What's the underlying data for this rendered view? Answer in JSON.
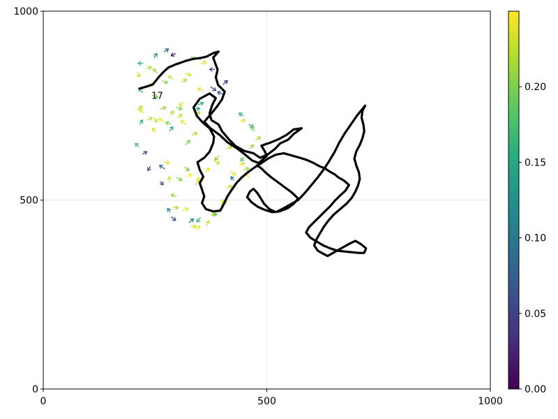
{
  "chart_data": {
    "type": "line+quiver",
    "xlim": [
      0,
      1000
    ],
    "ylim": [
      0,
      1000
    ],
    "x_ticks": [
      "0",
      "500",
      "1000"
    ],
    "y_ticks": [
      "0",
      "500",
      "1000"
    ],
    "grid": true,
    "annotation": {
      "text": "17",
      "x": 255,
      "y": 768
    },
    "path_color": "#000000",
    "path": [
      [
        215,
        795
      ],
      [
        230,
        800
      ],
      [
        245,
        806
      ],
      [
        258,
        825
      ],
      [
        268,
        838
      ],
      [
        280,
        851
      ],
      [
        296,
        859
      ],
      [
        308,
        864
      ],
      [
        320,
        869
      ],
      [
        336,
        874
      ],
      [
        352,
        876
      ],
      [
        366,
        880
      ],
      [
        380,
        889
      ],
      [
        392,
        893
      ],
      [
        380,
        877
      ],
      [
        385,
        861
      ],
      [
        390,
        845
      ],
      [
        386,
        825
      ],
      [
        391,
        805
      ],
      [
        406,
        787
      ],
      [
        400,
        767
      ],
      [
        389,
        748
      ],
      [
        376,
        729
      ],
      [
        360,
        707
      ],
      [
        374,
        690
      ],
      [
        395,
        672
      ],
      [
        412,
        653
      ],
      [
        433,
        637
      ],
      [
        452,
        620
      ],
      [
        467,
        605
      ],
      [
        482,
        598
      ],
      [
        500,
        617
      ],
      [
        495,
        630
      ],
      [
        488,
        644
      ],
      [
        510,
        653
      ],
      [
        528,
        662
      ],
      [
        545,
        673
      ],
      [
        560,
        687
      ],
      [
        578,
        690
      ],
      [
        560,
        675
      ],
      [
        548,
        660
      ],
      [
        530,
        650
      ],
      [
        518,
        635
      ],
      [
        501,
        620
      ],
      [
        485,
        612
      ],
      [
        470,
        624
      ],
      [
        450,
        630
      ],
      [
        430,
        643
      ],
      [
        415,
        661
      ],
      [
        400,
        682
      ],
      [
        392,
        700
      ],
      [
        376,
        712
      ],
      [
        372,
        730
      ],
      [
        378,
        752
      ],
      [
        386,
        770
      ],
      [
        372,
        782
      ],
      [
        350,
        768
      ],
      [
        336,
        745
      ],
      [
        344,
        722
      ],
      [
        357,
        705
      ],
      [
        372,
        690
      ],
      [
        382,
        668
      ],
      [
        380,
        650
      ],
      [
        372,
        628
      ],
      [
        360,
        612
      ],
      [
        345,
        600
      ],
      [
        350,
        580
      ],
      [
        358,
        562
      ],
      [
        350,
        545
      ],
      [
        355,
        528
      ],
      [
        360,
        510
      ],
      [
        355,
        492
      ],
      [
        364,
        476
      ],
      [
        380,
        470
      ],
      [
        396,
        472
      ],
      [
        404,
        490
      ],
      [
        412,
        510
      ],
      [
        422,
        528
      ],
      [
        432,
        545
      ],
      [
        444,
        560
      ],
      [
        458,
        574
      ],
      [
        472,
        586
      ],
      [
        488,
        598
      ],
      [
        503,
        610
      ],
      [
        520,
        620
      ],
      [
        538,
        624
      ],
      [
        556,
        618
      ],
      [
        574,
        612
      ],
      [
        590,
        606
      ],
      [
        605,
        598
      ],
      [
        617,
        590
      ],
      [
        630,
        584
      ],
      [
        640,
        576
      ],
      [
        652,
        568
      ],
      [
        660,
        560
      ],
      [
        672,
        552
      ],
      [
        684,
        540
      ],
      [
        676,
        525
      ],
      [
        664,
        512
      ],
      [
        652,
        498
      ],
      [
        642,
        484
      ],
      [
        630,
        470
      ],
      [
        618,
        456
      ],
      [
        606,
        442
      ],
      [
        594,
        428
      ],
      [
        588,
        414
      ],
      [
        598,
        400
      ],
      [
        612,
        390
      ],
      [
        626,
        380
      ],
      [
        642,
        372
      ],
      [
        658,
        366
      ],
      [
        674,
        364
      ],
      [
        690,
        362
      ],
      [
        706,
        360
      ],
      [
        718,
        360
      ],
      [
        722,
        372
      ],
      [
        710,
        384
      ],
      [
        698,
        392
      ],
      [
        684,
        384
      ],
      [
        672,
        376
      ],
      [
        660,
        368
      ],
      [
        648,
        360
      ],
      [
        636,
        352
      ],
      [
        626,
        358
      ],
      [
        614,
        366
      ],
      [
        606,
        380
      ],
      [
        612,
        398
      ],
      [
        620,
        414
      ],
      [
        628,
        430
      ],
      [
        638,
        446
      ],
      [
        650,
        462
      ],
      [
        664,
        476
      ],
      [
        678,
        490
      ],
      [
        690,
        506
      ],
      [
        698,
        522
      ],
      [
        704,
        538
      ],
      [
        708,
        556
      ],
      [
        706,
        574
      ],
      [
        700,
        592
      ],
      [
        696,
        610
      ],
      [
        700,
        628
      ],
      [
        708,
        646
      ],
      [
        714,
        664
      ],
      [
        718,
        682
      ],
      [
        716,
        700
      ],
      [
        712,
        718
      ],
      [
        714,
        736
      ],
      [
        720,
        750
      ],
      [
        702,
        724
      ],
      [
        688,
        700
      ],
      [
        674,
        676
      ],
      [
        662,
        652
      ],
      [
        652,
        628
      ],
      [
        640,
        604
      ],
      [
        628,
        582
      ],
      [
        614,
        560
      ],
      [
        600,
        540
      ],
      [
        586,
        520
      ],
      [
        570,
        500
      ],
      [
        552,
        488
      ],
      [
        534,
        476
      ],
      [
        520,
        468
      ],
      [
        506,
        476
      ],
      [
        494,
        490
      ],
      [
        486,
        506
      ],
      [
        478,
        520
      ],
      [
        470,
        530
      ],
      [
        462,
        522
      ],
      [
        456,
        508
      ],
      [
        466,
        494
      ],
      [
        480,
        482
      ],
      [
        496,
        474
      ],
      [
        512,
        468
      ],
      [
        528,
        470
      ],
      [
        546,
        478
      ],
      [
        560,
        490
      ],
      [
        570,
        504
      ],
      [
        556,
        520
      ],
      [
        540,
        534
      ],
      [
        524,
        548
      ],
      [
        510,
        560
      ],
      [
        498,
        572
      ],
      [
        488,
        584
      ],
      [
        478,
        592
      ]
    ],
    "quiver_colormap": "viridis",
    "arrows": [
      [
        210,
        740,
        12,
        8,
        0.22
      ],
      [
        225,
        730,
        -10,
        10,
        0.24
      ],
      [
        248,
        718,
        6,
        -12,
        0.23
      ],
      [
        262,
        740,
        12,
        6,
        0.21
      ],
      [
        270,
        710,
        -12,
        4,
        0.25
      ],
      [
        286,
        724,
        4,
        12,
        0.22
      ],
      [
        298,
        746,
        12,
        -6,
        0.2
      ],
      [
        314,
        758,
        -10,
        -8,
        0.24
      ],
      [
        338,
        742,
        12,
        0,
        0.14
      ],
      [
        216,
        700,
        6,
        12,
        0.16
      ],
      [
        232,
        712,
        12,
        6,
        0.23
      ],
      [
        252,
        680,
        -8,
        10,
        0.24
      ],
      [
        282,
        682,
        8,
        12,
        0.16
      ],
      [
        286,
        700,
        -12,
        6,
        0.2
      ],
      [
        300,
        718,
        10,
        8,
        0.23
      ],
      [
        214,
        640,
        -8,
        10,
        0.17
      ],
      [
        222,
        622,
        10,
        6,
        0.06
      ],
      [
        240,
        590,
        -6,
        -12,
        0.05
      ],
      [
        270,
        602,
        12,
        -4,
        0.24
      ],
      [
        272,
        582,
        -12,
        10,
        0.08
      ],
      [
        262,
        550,
        6,
        -10,
        0.06
      ],
      [
        282,
        548,
        0,
        14,
        0.23
      ],
      [
        298,
        560,
        12,
        -8,
        0.2
      ],
      [
        298,
        510,
        -12,
        4,
        0.21
      ],
      [
        290,
        480,
        12,
        0,
        0.22
      ],
      [
        284,
        468,
        -6,
        10,
        0.12
      ],
      [
        286,
        456,
        10,
        -10,
        0.06
      ],
      [
        312,
        472,
        12,
        6,
        0.24
      ],
      [
        326,
        440,
        10,
        10,
        0.1
      ],
      [
        330,
        430,
        12,
        0,
        0.23
      ],
      [
        342,
        420,
        8,
        12,
        0.25
      ],
      [
        352,
        454,
        -8,
        -12,
        0.16
      ],
      [
        366,
        432,
        4,
        14,
        0.23
      ],
      [
        376,
        462,
        12,
        0,
        0.17
      ],
      [
        388,
        468,
        -10,
        -8,
        0.22
      ],
      [
        398,
        488,
        12,
        10,
        0.23
      ],
      [
        404,
        504,
        -4,
        -12,
        0.24
      ],
      [
        410,
        532,
        12,
        6,
        0.23
      ],
      [
        426,
        552,
        -6,
        10,
        0.1
      ],
      [
        420,
        576,
        10,
        -10,
        0.24
      ],
      [
        448,
        580,
        12,
        4,
        0.21
      ],
      [
        460,
        560,
        -8,
        12,
        0.24
      ],
      [
        316,
        588,
        10,
        -10,
        0.2
      ],
      [
        320,
        562,
        12,
        6,
        0.25
      ],
      [
        340,
        540,
        10,
        12,
        0.23
      ],
      [
        356,
        556,
        -12,
        0,
        0.24
      ],
      [
        362,
        574,
        10,
        10,
        0.25
      ],
      [
        382,
        604,
        12,
        -8,
        0.23
      ],
      [
        394,
        618,
        -10,
        -12,
        0.21
      ],
      [
        410,
        636,
        12,
        6,
        0.22
      ],
      [
        318,
        646,
        10,
        12,
        0.2
      ],
      [
        332,
        672,
        12,
        6,
        0.22
      ],
      [
        320,
        700,
        -12,
        10,
        0.24
      ],
      [
        340,
        722,
        10,
        12,
        0.22
      ],
      [
        346,
        752,
        12,
        6,
        0.15
      ],
      [
        358,
        788,
        -12,
        8,
        0.24
      ],
      [
        374,
        800,
        12,
        -10,
        0.06
      ],
      [
        402,
        806,
        10,
        10,
        0.03
      ],
      [
        402,
        780,
        -12,
        6,
        0.07
      ],
      [
        384,
        846,
        -12,
        0,
        0.06
      ],
      [
        352,
        860,
        12,
        6,
        0.24
      ],
      [
        330,
        880,
        10,
        -8,
        0.2
      ],
      [
        296,
        888,
        -10,
        -6,
        0.02
      ],
      [
        270,
        892,
        10,
        8,
        0.08
      ],
      [
        248,
        876,
        6,
        12,
        0.12
      ],
      [
        224,
        862,
        -12,
        0,
        0.17
      ],
      [
        210,
        838,
        6,
        -12,
        0.23
      ],
      [
        230,
        848,
        12,
        4,
        0.22
      ],
      [
        256,
        836,
        -10,
        10,
        0.21
      ],
      [
        266,
        816,
        12,
        -6,
        0.2
      ],
      [
        240,
        800,
        6,
        10,
        0.24
      ],
      [
        222,
        784,
        -8,
        12,
        0.16
      ],
      [
        244,
        778,
        12,
        -6,
        0.2
      ],
      [
        292,
        820,
        -12,
        8,
        0.23
      ],
      [
        310,
        812,
        10,
        8,
        0.22
      ],
      [
        318,
        836,
        12,
        -6,
        0.24
      ],
      [
        440,
        708,
        12,
        4,
        0.24
      ],
      [
        448,
        722,
        -10,
        8,
        0.16
      ],
      [
        460,
        700,
        10,
        -8,
        0.13
      ],
      [
        472,
        682,
        -6,
        12,
        0.2
      ],
      [
        474,
        660,
        12,
        6,
        0.22
      ],
      [
        462,
        636,
        8,
        10,
        0.21
      ],
      [
        450,
        614,
        -8,
        -10,
        0.18
      ],
      [
        438,
        592,
        12,
        6,
        0.24
      ]
    ]
  },
  "colorbar": {
    "colormap": "viridis",
    "range": [
      0,
      0.25
    ],
    "ticks": [
      "0.00",
      "0.05",
      "0.10",
      "0.15",
      "0.20"
    ]
  }
}
